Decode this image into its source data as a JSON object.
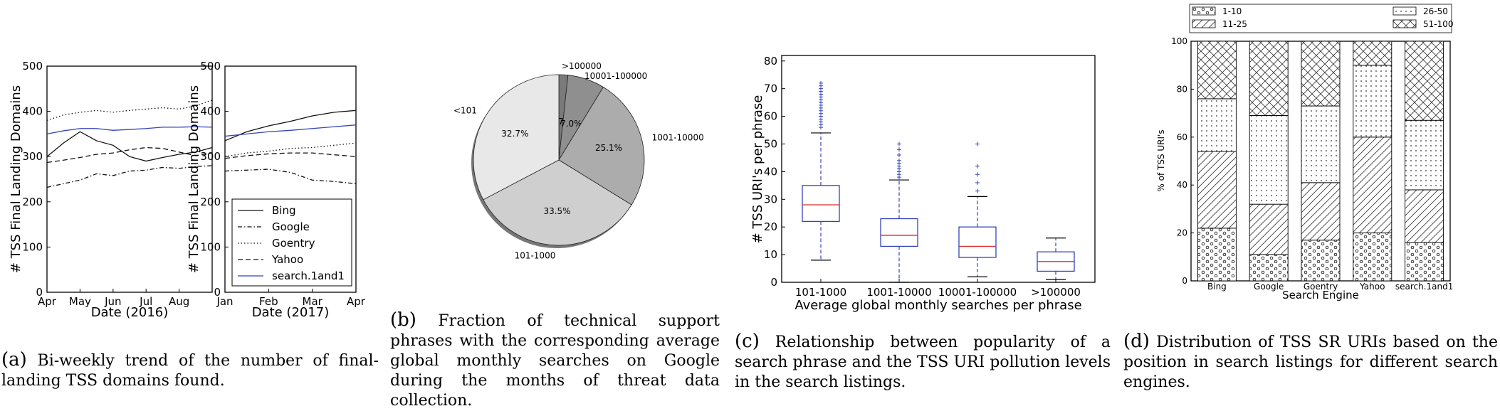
{
  "captions": {
    "a": {
      "label": "(a)",
      "text": "Bi-weekly trend of the number of final-landing TSS domains found."
    },
    "b": {
      "label": "(b)",
      "text": "Fraction of technical support phrases with the corresponding average global monthly searches on Google during the months of threat data collection."
    },
    "c": {
      "label": "(c)",
      "text": "Relationship between popularity of a search phrase and the TSS URI pollution levels in the search listings."
    },
    "d": {
      "label": "(d)",
      "text": "Distribution of TSS SR URIs based on the position in search listings for different search engines."
    }
  },
  "chart_data": [
    {
      "id": "a1",
      "type": "line",
      "xlabel": "Date (2016)",
      "ylabel": "# TSS Final Landing Domains",
      "x_ticks": [
        "Apr",
        "May",
        "Jun",
        "Jul",
        "Aug"
      ],
      "y_ticks": [
        "0",
        "100",
        "200",
        "300",
        "400",
        "500"
      ],
      "ylim": [
        0,
        500
      ],
      "x": [
        0,
        0.5,
        1,
        1.5,
        2,
        2.5,
        3,
        3.5,
        4,
        4.5,
        5
      ],
      "series": [
        {
          "name": "Bing",
          "values": [
            300,
            330,
            355,
            335,
            325,
            300,
            290,
            298,
            305,
            310,
            320
          ]
        },
        {
          "name": "Google",
          "values": [
            232,
            240,
            248,
            262,
            258,
            268,
            270,
            276,
            274,
            278,
            280
          ]
        },
        {
          "name": "Goentry",
          "values": [
            380,
            392,
            398,
            402,
            398,
            402,
            405,
            408,
            405,
            412,
            425
          ]
        },
        {
          "name": "Yahoo",
          "values": [
            287,
            292,
            298,
            305,
            308,
            315,
            320,
            318,
            310,
            302,
            308
          ]
        },
        {
          "name": "search.1and1",
          "values": [
            350,
            357,
            362,
            362,
            358,
            360,
            362,
            365,
            365,
            366,
            365
          ]
        }
      ]
    },
    {
      "id": "a2",
      "type": "line",
      "xlabel": "Date (2017)",
      "ylabel": "# TSS Final Landing Domains",
      "x_ticks": [
        "Jan",
        "Feb",
        "Mar",
        "Apr"
      ],
      "y_ticks": [
        "0",
        "100",
        "200",
        "300",
        "400",
        "500"
      ],
      "ylim": [
        0,
        500
      ],
      "x": [
        0,
        0.5,
        1,
        1.5,
        2,
        2.5,
        3
      ],
      "series": [
        {
          "name": "Bing",
          "values": [
            335,
            355,
            368,
            378,
            390,
            398,
            402
          ]
        },
        {
          "name": "Google",
          "values": [
            268,
            270,
            272,
            265,
            248,
            245,
            240
          ]
        },
        {
          "name": "Goentry",
          "values": [
            300,
            308,
            312,
            318,
            320,
            325,
            330
          ]
        },
        {
          "name": "Yahoo",
          "values": [
            296,
            302,
            306,
            308,
            308,
            304,
            300
          ]
        },
        {
          "name": "search.1and1",
          "values": [
            345,
            350,
            355,
            358,
            362,
            366,
            370
          ]
        }
      ],
      "legend": {
        "placement": "lower-right",
        "entries": [
          "Bing",
          "Google",
          "Goentry",
          "Yahoo",
          "search.1and1"
        ]
      }
    },
    {
      "id": "b",
      "type": "pie",
      "slices": [
        {
          "label": ">100000",
          "value": 1.7,
          "pct_label": "1.7%",
          "color": "#7a7a7a"
        },
        {
          "label": "10001-100000",
          "value": 7.0,
          "pct_label": "7.0%",
          "color": "#8f8f8f"
        },
        {
          "label": "1001-10000",
          "value": 25.1,
          "pct_label": "25.1%",
          "color": "#acacac"
        },
        {
          "label": "101-1000",
          "value": 33.5,
          "pct_label": "33.5%",
          "color": "#cfcfcf"
        },
        {
          "label": "<101",
          "value": 32.7,
          "pct_label": "32.7%",
          "color": "#e8e8e8"
        }
      ]
    },
    {
      "id": "c",
      "type": "box",
      "xlabel": "Average global monthly searches per phrase",
      "ylabel": "# TSS URI's per phrase",
      "ylim": [
        0,
        82
      ],
      "y_ticks": [
        "0",
        "10",
        "20",
        "30",
        "40",
        "50",
        "60",
        "70",
        "80"
      ],
      "categories": [
        "101-1000",
        "1001-10000",
        "10001-100000",
        ">100000"
      ],
      "boxes": [
        {
          "min": 8,
          "q1": 22,
          "median": 28,
          "q3": 35,
          "max": 54,
          "outliers": [
            56,
            57,
            58,
            59,
            60,
            61,
            62,
            63,
            64,
            65,
            66,
            67,
            68,
            69,
            70,
            71,
            72
          ]
        },
        {
          "min": 0,
          "q1": 13,
          "median": 17,
          "q3": 23,
          "max": 37,
          "outliers": [
            38,
            39,
            40,
            41,
            42,
            43,
            44,
            46,
            48,
            50
          ]
        },
        {
          "min": 2,
          "q1": 9,
          "median": 13,
          "q3": 20,
          "max": 31,
          "outliers": [
            33,
            36,
            39,
            42,
            50
          ]
        },
        {
          "min": 1,
          "q1": 4,
          "median": 7.5,
          "q3": 11,
          "max": 16,
          "outliers": []
        }
      ]
    },
    {
      "id": "d",
      "type": "bar",
      "stacked": true,
      "xlabel": "Search Engine",
      "ylabel": "% of TSS URI's",
      "ylim": [
        0,
        100
      ],
      "y_ticks": [
        "0",
        "20",
        "40",
        "60",
        "80",
        "100"
      ],
      "categories": [
        "Bing",
        "Google",
        "Goentry",
        "Yahoo",
        "search.1and1"
      ],
      "series": [
        {
          "name": "1-10",
          "values": [
            22,
            11,
            17,
            20,
            16
          ]
        },
        {
          "name": "11-25",
          "values": [
            32,
            21,
            24,
            40,
            22
          ]
        },
        {
          "name": "26-50",
          "values": [
            22,
            37,
            32,
            30,
            29
          ]
        },
        {
          "name": "51-100",
          "values": [
            24,
            31,
            27,
            10,
            33
          ]
        }
      ],
      "legend": {
        "placement": "top",
        "entries": [
          "1-10",
          "11-25",
          "26-50",
          "51-100"
        ]
      }
    }
  ]
}
